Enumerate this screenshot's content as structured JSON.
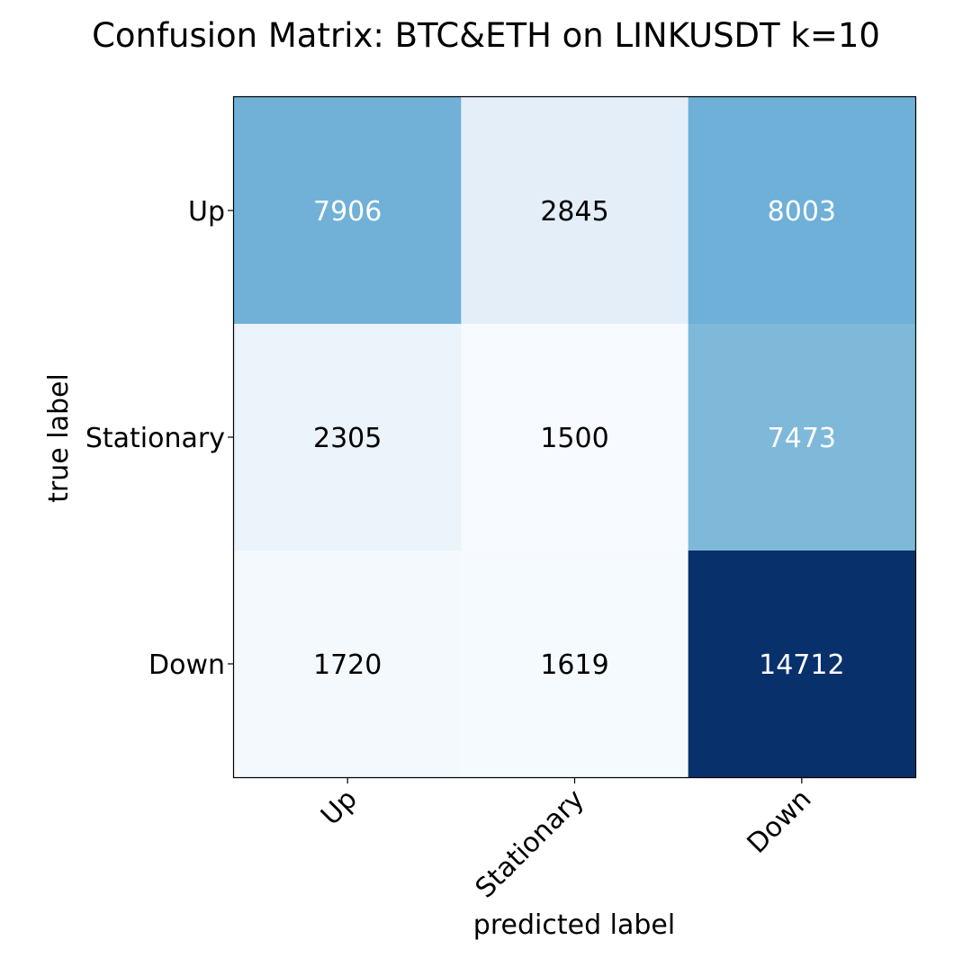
{
  "chart_data": {
    "type": "heatmap",
    "title": "Confusion Matrix: BTC&ETH on LINKUSDT k=10",
    "xlabel": "predicted label",
    "ylabel": "true label",
    "x_categories": [
      "Up",
      "Stationary",
      "Down"
    ],
    "y_categories": [
      "Up",
      "Stationary",
      "Down"
    ],
    "values": [
      [
        7906,
        2845,
        8003
      ],
      [
        2305,
        1500,
        7473
      ],
      [
        1720,
        1619,
        14712
      ]
    ],
    "colormap": "Blues",
    "vmin": 1500,
    "vmax": 14712,
    "text_threshold": 7350,
    "colors": {
      "text_light": "#ffffff",
      "text_dark": "#000000"
    }
  }
}
